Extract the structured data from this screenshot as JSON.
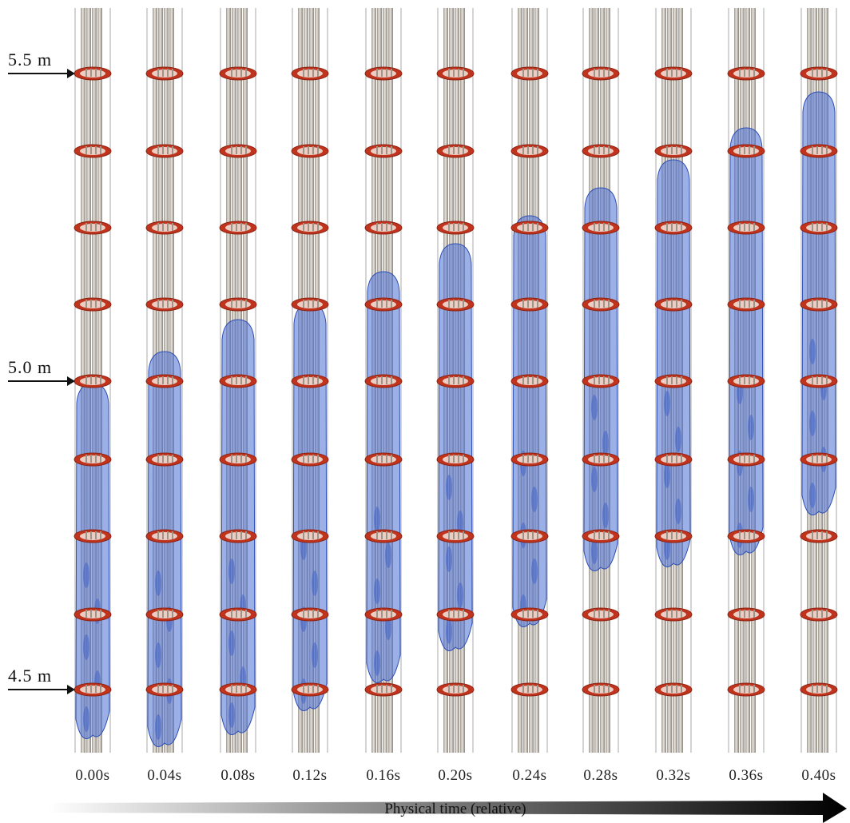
{
  "height_markers": [
    {
      "label": "5.5 m",
      "value_m": 5.5
    },
    {
      "label": "5.0 m",
      "value_m": 5.0
    },
    {
      "label": "4.5 m",
      "value_m": 4.5
    }
  ],
  "time_labels": [
    "0.00s",
    "0.04s",
    "0.08s",
    "0.12s",
    "0.16s",
    "0.20s",
    "0.24s",
    "0.28s",
    "0.32s",
    "0.36s",
    "0.40s"
  ],
  "axis_title": "Physical time (relative)",
  "colors": {
    "rod": "#c8c3bb",
    "rod_dark": "#8f8a82",
    "grid_spacer": "#c0341d",
    "vapor": "#4a6fd6",
    "axis_arrow": "#111111"
  },
  "icons": [
    "height-pointer-arrow-icon",
    "time-axis-arrow-icon"
  ]
}
